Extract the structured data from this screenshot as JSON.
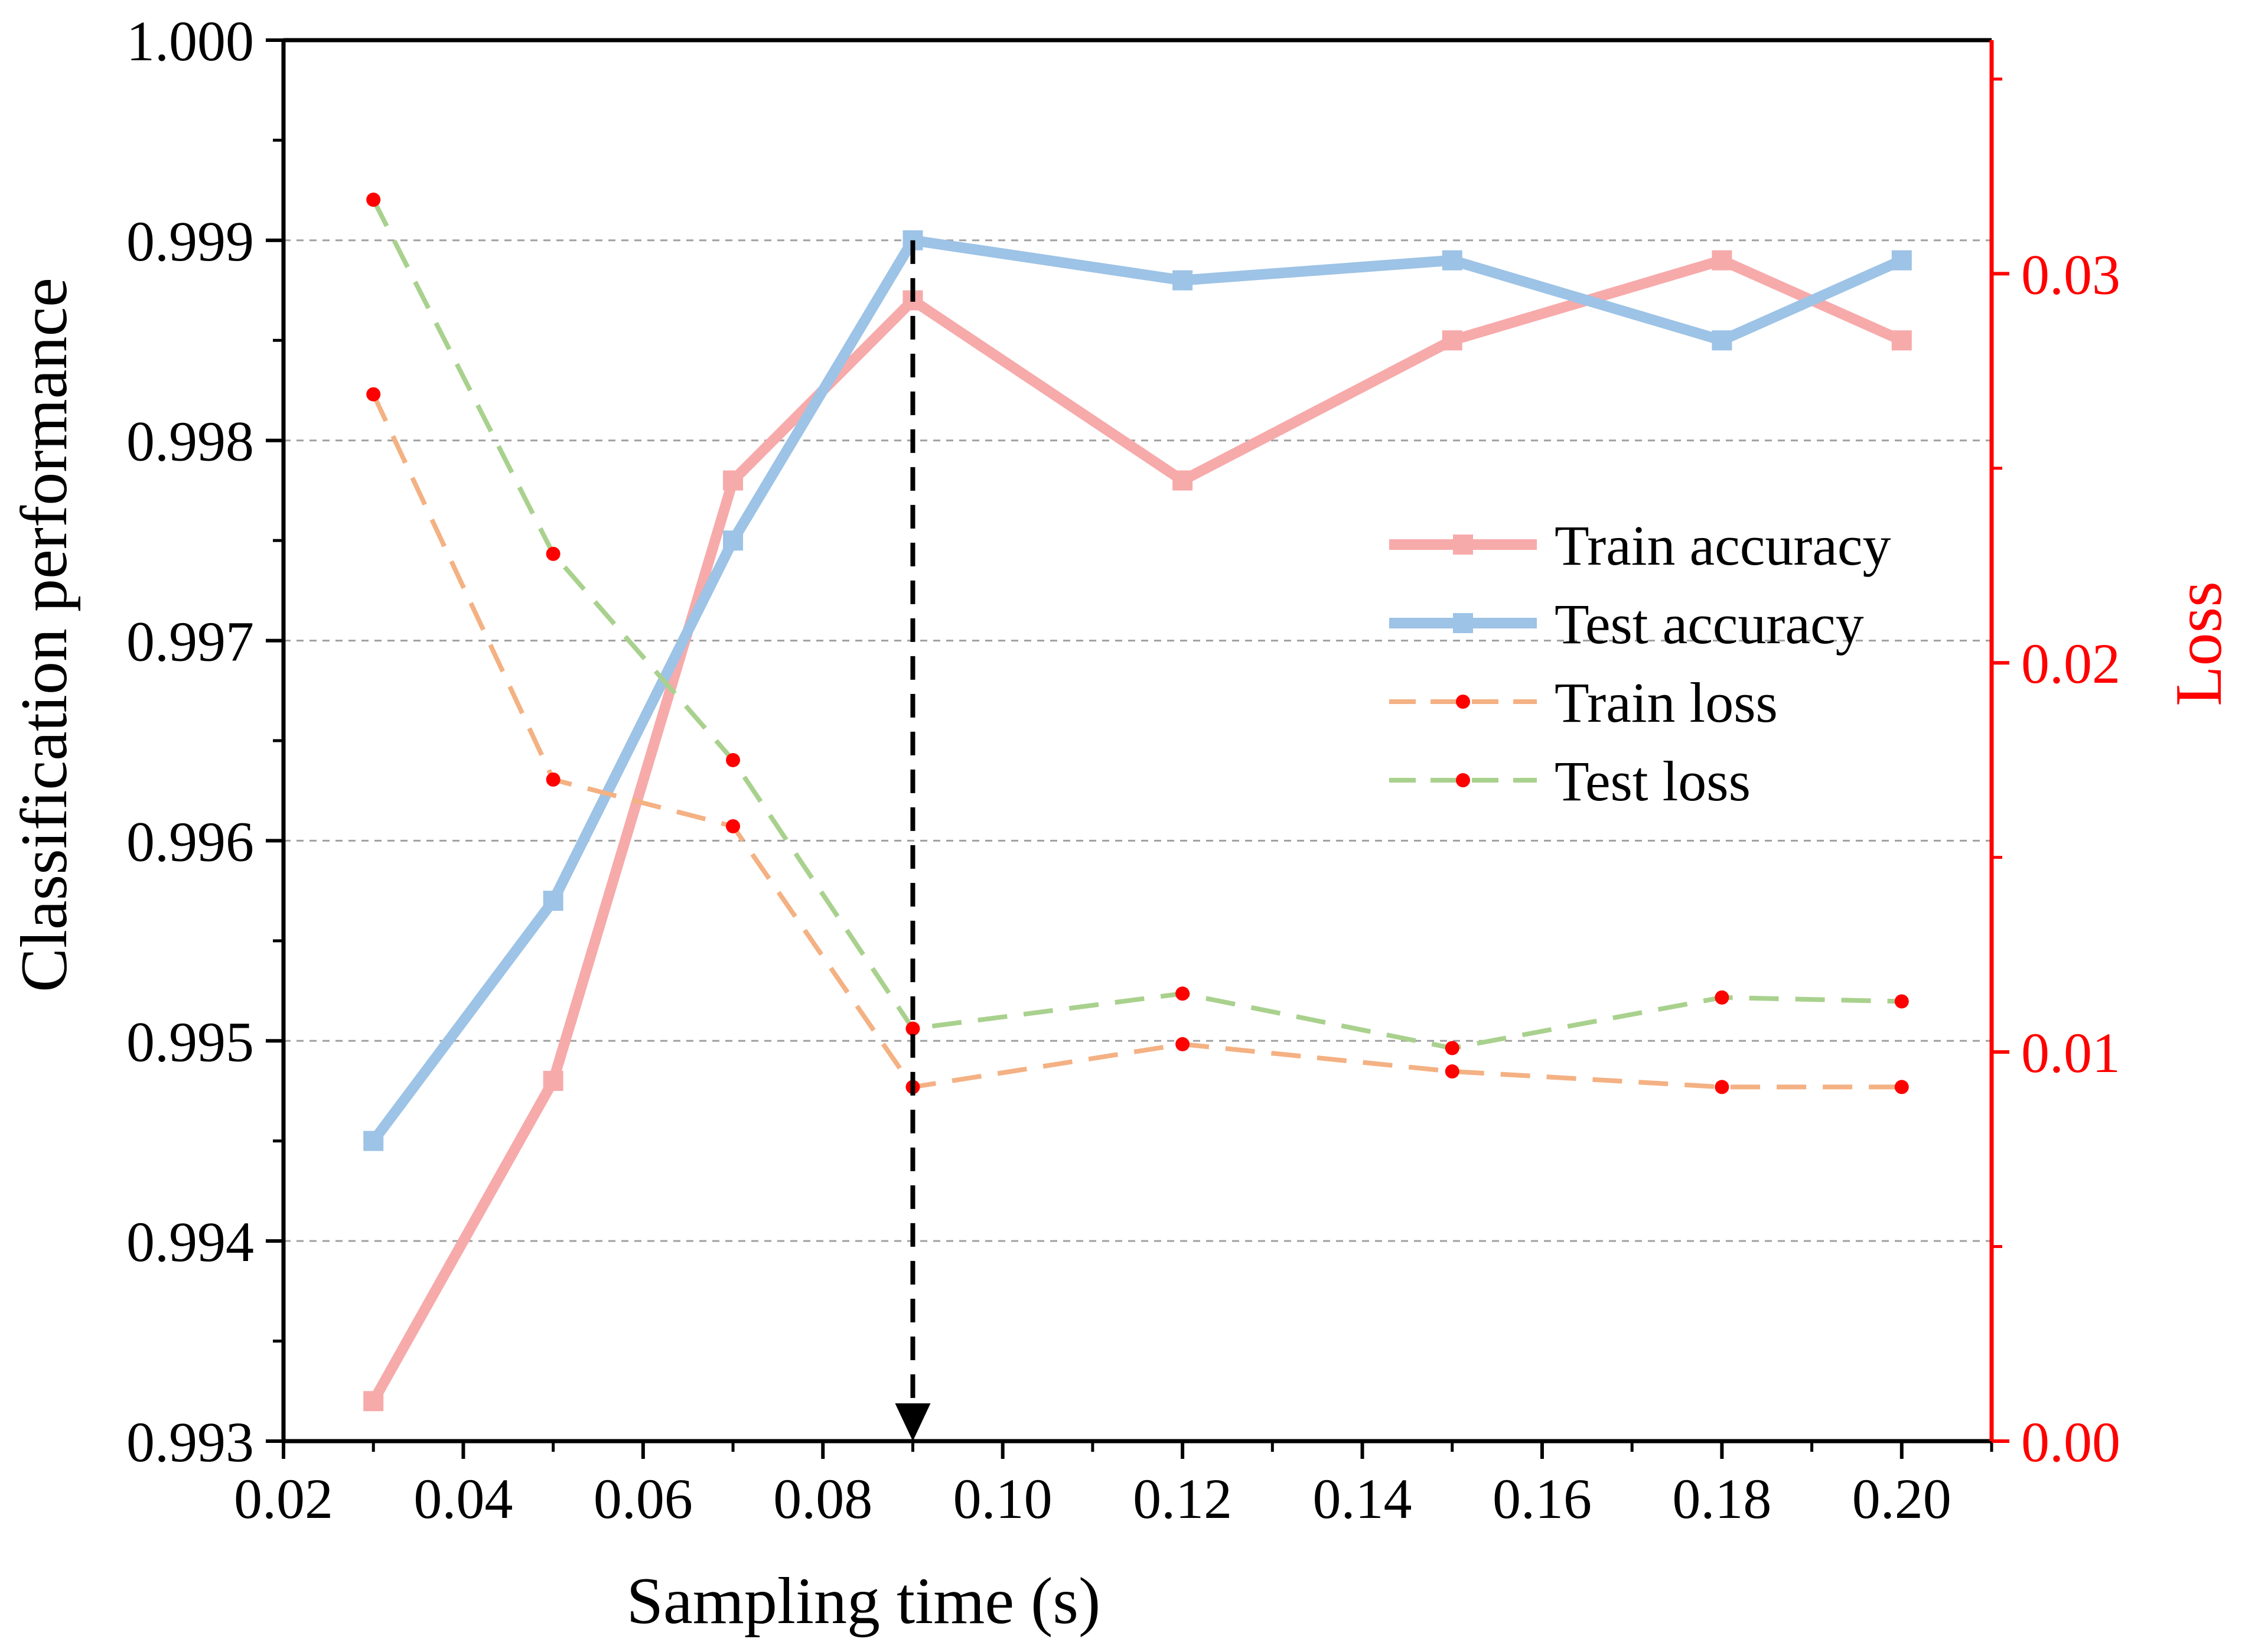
{
  "chart_data": {
    "type": "line",
    "x": [
      0.03,
      0.05,
      0.07,
      0.09,
      0.12,
      0.15,
      0.18,
      0.2
    ],
    "xlabel": "Sampling time (s)",
    "ylabel_left": "Classification performance",
    "ylabel_right": "Loss",
    "xlim": [
      0.02,
      0.21
    ],
    "ylim_left": [
      0.993,
      1.0
    ],
    "ylim_right": [
      0.0,
      0.036
    ],
    "x_ticks": [
      "0.02",
      "0.04",
      "0.06",
      "0.08",
      "0.10",
      "0.12",
      "0.14",
      "0.16",
      "0.18",
      "0.20"
    ],
    "y_left_ticks": [
      "0.993",
      "0.994",
      "0.995",
      "0.996",
      "0.997",
      "0.998",
      "0.999",
      "1.000"
    ],
    "y_right_ticks": [
      "0.00",
      "0.01",
      "0.02",
      "0.03"
    ],
    "grid": true,
    "legend_position": "center-right",
    "annotation": "dashed downward arrow at x = 0.09",
    "annotation_x": 0.09,
    "series": [
      {
        "name": "Train accuracy",
        "axis": "left",
        "color": "#f7aaaa",
        "style": "solid",
        "marker": "square",
        "values": [
          0.9932,
          0.9948,
          0.9978,
          0.9987,
          0.9978,
          0.9985,
          0.9989,
          0.9985
        ]
      },
      {
        "name": "Test accuracy",
        "axis": "left",
        "color": "#9dc3e6",
        "style": "solid",
        "marker": "square",
        "values": [
          0.9945,
          0.9957,
          0.9975,
          0.999,
          0.9988,
          0.9989,
          0.9985,
          0.9989
        ]
      },
      {
        "name": "Train loss",
        "axis": "right",
        "color": "#f4b183",
        "style": "dashed",
        "marker": "dot",
        "marker_color": "#ff0000",
        "values": [
          0.0269,
          0.017,
          0.0158,
          0.0091,
          0.0102,
          0.0095,
          0.0091,
          0.0091
        ]
      },
      {
        "name": "Test loss",
        "axis": "right",
        "color": "#a9d18e",
        "style": "dashed",
        "marker": "dot",
        "marker_color": "#ff0000",
        "values": [
          0.0319,
          0.0228,
          0.0175,
          0.0106,
          0.0115,
          0.0101,
          0.0114,
          0.0113
        ]
      }
    ]
  }
}
